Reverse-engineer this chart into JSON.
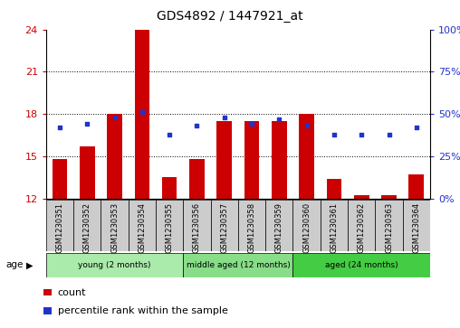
{
  "title": "GDS4892 / 1447921_at",
  "samples": [
    "GSM1230351",
    "GSM1230352",
    "GSM1230353",
    "GSM1230354",
    "GSM1230355",
    "GSM1230356",
    "GSM1230357",
    "GSM1230358",
    "GSM1230359",
    "GSM1230360",
    "GSM1230361",
    "GSM1230362",
    "GSM1230363",
    "GSM1230364"
  ],
  "counts": [
    14.8,
    15.7,
    18.0,
    24.0,
    13.5,
    14.8,
    17.5,
    17.5,
    17.5,
    18.0,
    13.4,
    12.2,
    12.2,
    13.7
  ],
  "percentile_ranks": [
    42,
    44,
    48,
    51,
    38,
    43,
    48,
    44,
    47,
    43,
    38,
    38,
    38,
    42
  ],
  "bar_color": "#cc0000",
  "dot_color": "#2233cc",
  "ylim_left": [
    12,
    24
  ],
  "ylim_right": [
    0,
    100
  ],
  "yticks_left": [
    12,
    15,
    18,
    21,
    24
  ],
  "yticks_right": [
    0,
    25,
    50,
    75,
    100
  ],
  "ytick_labels_right": [
    "0%",
    "25%",
    "50%",
    "75%",
    "100%"
  ],
  "groups": [
    {
      "label": "young (2 months)",
      "start": 0,
      "end": 5,
      "color": "#aaeaaa"
    },
    {
      "label": "middle aged (12 months)",
      "start": 5,
      "end": 9,
      "color": "#88dd88"
    },
    {
      "label": "aged (24 months)",
      "start": 9,
      "end": 14,
      "color": "#44cc44"
    }
  ],
  "age_label": "age",
  "legend_count": "count",
  "legend_percentile": "percentile rank within the sample",
  "grid_yticks": [
    15,
    18,
    21
  ],
  "bar_bottom": 12,
  "bar_width": 0.55,
  "tick_label_color_left": "#cc0000",
  "tick_label_color_right": "#2233cc",
  "sample_box_color": "#cccccc",
  "title_fontsize": 10,
  "axis_fontsize": 8,
  "label_fontsize": 6,
  "group_fontsize": 6.5,
  "legend_fontsize": 8
}
